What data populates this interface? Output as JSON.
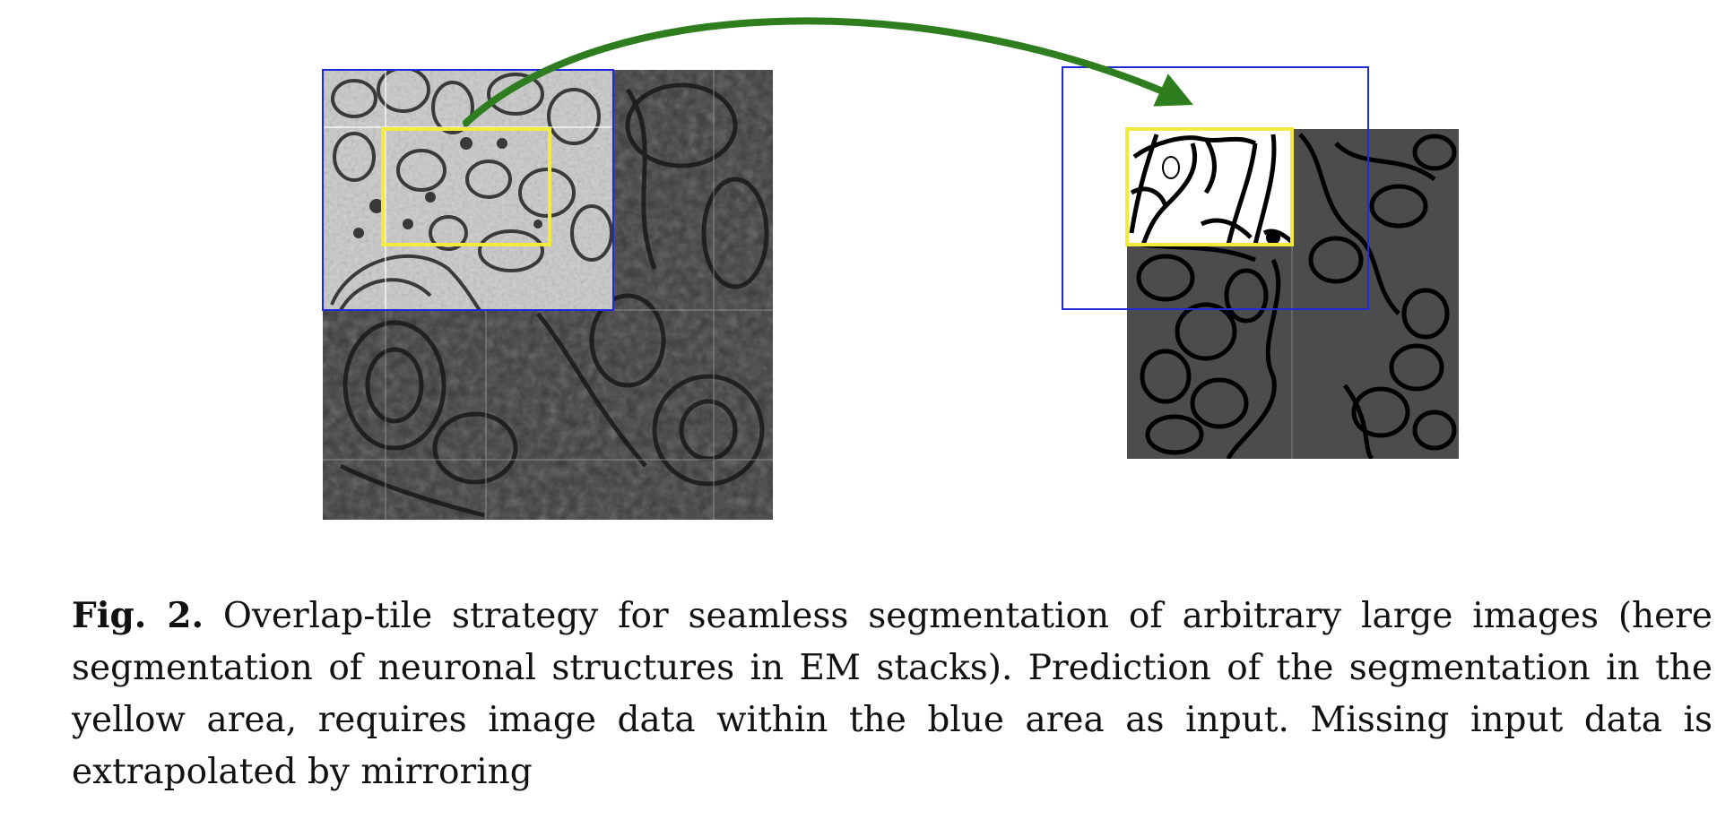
{
  "caption": {
    "label": "Fig. 2.",
    "text": "Overlap-tile strategy for seamless segmentation of arbitrary large images (here segmentation of neuronal structures in EM stacks). Prediction of the segmentation in the yellow area, requires image data within the blue area as input. Missing input data is extrapolated by mirroring"
  },
  "figure": {
    "input_panel": "em-input-tile-mirrored",
    "output_panel": "segmentation-output-map",
    "colors": {
      "input_box": "#1f2bd6",
      "output_box": "#f2ea3c",
      "arrow": "#2e7d1e",
      "seg_background": "#4c4c4c",
      "seg_cells": "#ffffff",
      "membrane": "#000000"
    }
  }
}
